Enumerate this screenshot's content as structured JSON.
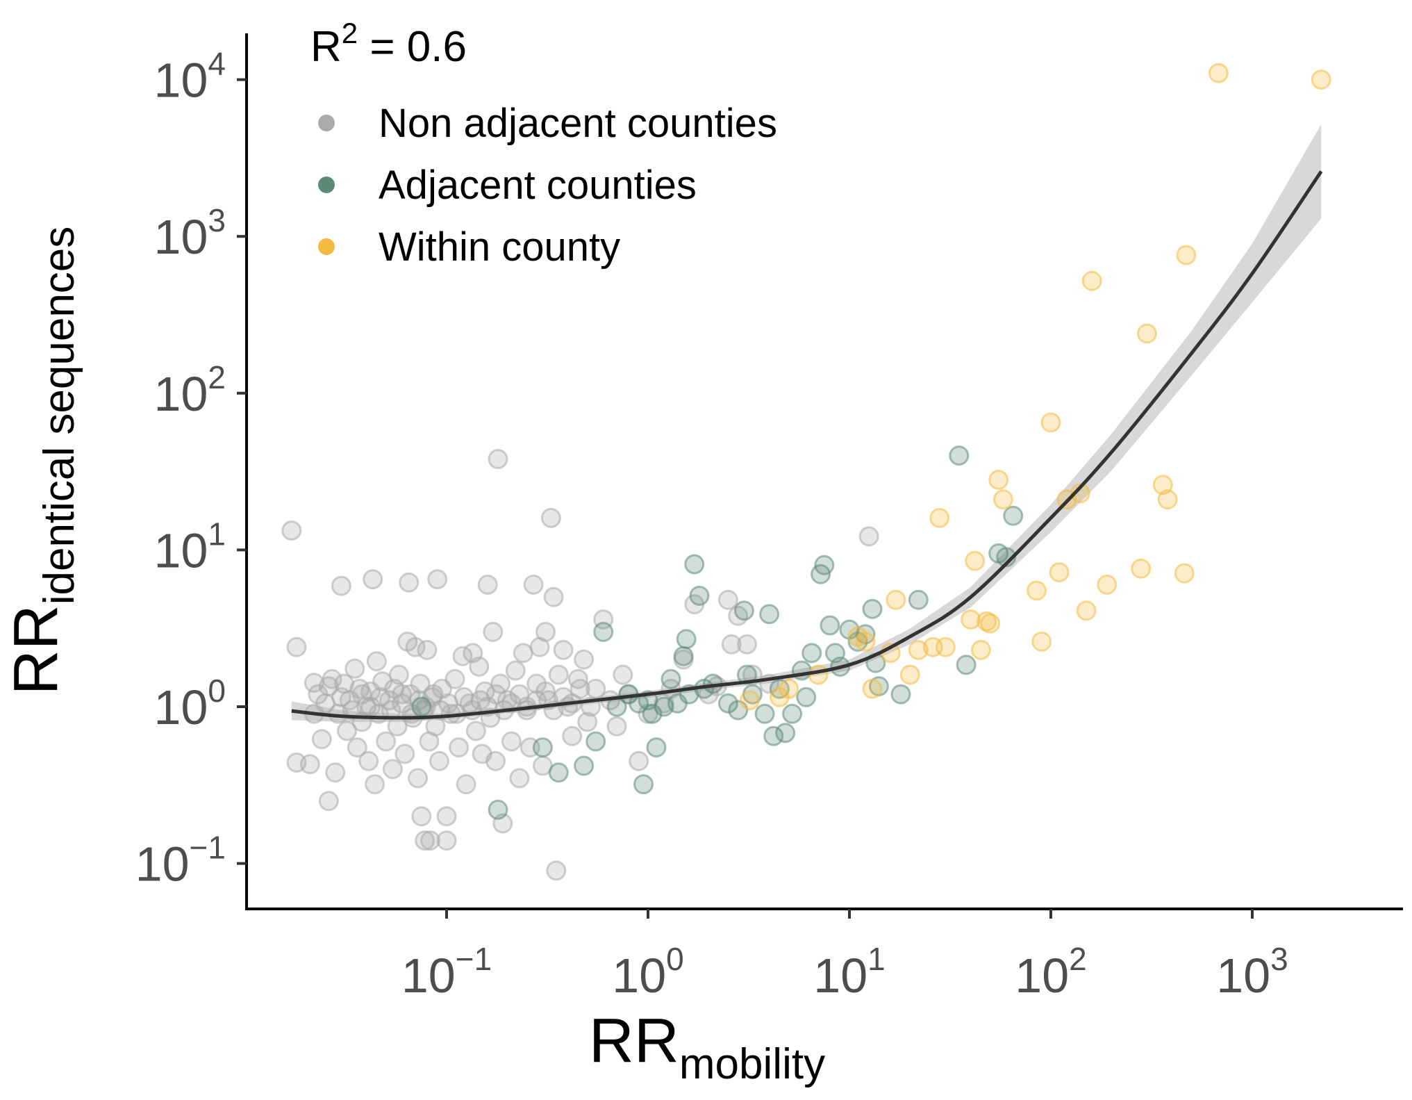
{
  "chart_data": {
    "type": "scatter",
    "x_scale": "log10",
    "y_scale": "log10",
    "xlim": [
      0.013,
      6000
    ],
    "ylim": [
      0.05,
      20000
    ],
    "x_ticks": [
      {
        "value": 0.1,
        "base": "10",
        "exp": "−1"
      },
      {
        "value": 1,
        "base": "10",
        "exp": "0"
      },
      {
        "value": 10,
        "base": "10",
        "exp": "1"
      },
      {
        "value": 100,
        "base": "10",
        "exp": "2"
      },
      {
        "value": 1000,
        "base": "10",
        "exp": "3"
      }
    ],
    "y_ticks": [
      {
        "value": 0.1,
        "base": "10",
        "exp": "−1"
      },
      {
        "value": 1,
        "base": "10",
        "exp": "0"
      },
      {
        "value": 10,
        "base": "10",
        "exp": "1"
      },
      {
        "value": 100,
        "base": "10",
        "exp": "2"
      },
      {
        "value": 1000,
        "base": "10",
        "exp": "3"
      },
      {
        "value": 10000,
        "base": "10",
        "exp": "4"
      }
    ],
    "xlabel": {
      "main": "RR",
      "sub": "mobility"
    },
    "ylabel": {
      "main": "RR",
      "sub": "identical sequences"
    },
    "annotation": {
      "main": "R",
      "sup": "2",
      "rest": " = 0.6"
    },
    "legend_position": "top-left",
    "grid": false,
    "series": [
      {
        "name": "Non adjacent counties",
        "color": "#aaaaaa",
        "points": [
          [
            0.017,
            13.3
          ],
          [
            0.018,
            2.4
          ],
          [
            0.018,
            0.44
          ],
          [
            0.021,
            0.43
          ],
          [
            0.022,
            1.42
          ],
          [
            0.023,
            1.2
          ],
          [
            0.024,
            0.62
          ],
          [
            0.025,
            1.05
          ],
          [
            0.026,
            0.25
          ],
          [
            0.027,
            1.5
          ],
          [
            0.028,
            0.38
          ],
          [
            0.029,
            0.9
          ],
          [
            0.03,
            5.9
          ],
          [
            0.031,
            1.4
          ],
          [
            0.032,
            0.7
          ],
          [
            0.033,
            1.1
          ],
          [
            0.035,
            1.75
          ],
          [
            0.036,
            0.55
          ],
          [
            0.037,
            1.3
          ],
          [
            0.038,
            0.8
          ],
          [
            0.04,
            1.0
          ],
          [
            0.041,
            0.45
          ],
          [
            0.042,
            1.25
          ],
          [
            0.043,
            6.5
          ],
          [
            0.044,
            0.32
          ],
          [
            0.045,
            1.95
          ],
          [
            0.046,
            0.9
          ],
          [
            0.048,
            1.45
          ],
          [
            0.05,
            0.6
          ],
          [
            0.052,
            1.1
          ],
          [
            0.054,
            0.4
          ],
          [
            0.055,
            1.3
          ],
          [
            0.057,
            0.75
          ],
          [
            0.058,
            1.6
          ],
          [
            0.06,
            1.05
          ],
          [
            0.062,
            0.5
          ],
          [
            0.064,
            2.6
          ],
          [
            0.065,
            6.2
          ],
          [
            0.066,
            1.2
          ],
          [
            0.068,
            0.85
          ],
          [
            0.07,
            2.4
          ],
          [
            0.072,
            0.35
          ],
          [
            0.074,
            1.4
          ],
          [
            0.075,
            0.2
          ],
          [
            0.077,
            0.95
          ],
          [
            0.078,
            0.14
          ],
          [
            0.08,
            2.3
          ],
          [
            0.082,
            0.6
          ],
          [
            0.083,
            0.14
          ],
          [
            0.085,
            1.15
          ],
          [
            0.088,
            0.75
          ],
          [
            0.09,
            6.5
          ],
          [
            0.092,
            0.45
          ],
          [
            0.095,
            1.3
          ],
          [
            0.1,
            0.14
          ],
          [
            0.1,
            0.2
          ],
          [
            0.105,
            0.9
          ],
          [
            0.11,
            1.5
          ],
          [
            0.115,
            0.55
          ],
          [
            0.12,
            2.1
          ],
          [
            0.125,
            0.32
          ],
          [
            0.13,
            1.05
          ],
          [
            0.135,
            2.2
          ],
          [
            0.14,
            0.7
          ],
          [
            0.145,
            1.8
          ],
          [
            0.15,
            0.5
          ],
          [
            0.155,
            1.25
          ],
          [
            0.16,
            6.0
          ],
          [
            0.165,
            0.85
          ],
          [
            0.17,
            3.0
          ],
          [
            0.175,
            0.45
          ],
          [
            0.18,
            38
          ],
          [
            0.185,
            1.4
          ],
          [
            0.19,
            0.18
          ],
          [
            0.2,
            1.1
          ],
          [
            0.21,
            0.6
          ],
          [
            0.22,
            1.7
          ],
          [
            0.23,
            0.35
          ],
          [
            0.24,
            2.2
          ],
          [
            0.25,
            1.0
          ],
          [
            0.26,
            0.55
          ],
          [
            0.27,
            6.0
          ],
          [
            0.28,
            1.4
          ],
          [
            0.29,
            2.4
          ],
          [
            0.3,
            0.42
          ],
          [
            0.31,
            3.0
          ],
          [
            0.32,
            1.1
          ],
          [
            0.33,
            16
          ],
          [
            0.34,
            5.0
          ],
          [
            0.35,
            0.09
          ],
          [
            0.36,
            1.6
          ],
          [
            0.38,
            2.3
          ],
          [
            0.4,
            1.0
          ],
          [
            0.42,
            0.65
          ],
          [
            0.45,
            1.5
          ],
          [
            0.48,
            2.0
          ],
          [
            0.5,
            0.8
          ],
          [
            0.55,
            1.3
          ],
          [
            0.6,
            3.6
          ],
          [
            0.65,
            1.1
          ],
          [
            0.7,
            0.75
          ],
          [
            0.75,
            1.6
          ],
          [
            0.8,
            1.2
          ],
          [
            0.9,
            0.45
          ],
          [
            1.0,
            0.9
          ],
          [
            1.2,
            1.05
          ],
          [
            1.3,
            1.3
          ],
          [
            1.5,
            2.0
          ],
          [
            1.7,
            4.5
          ],
          [
            2.0,
            1.2
          ],
          [
            2.2,
            1.35
          ],
          [
            2.5,
            4.8
          ],
          [
            2.6,
            2.5
          ],
          [
            2.8,
            3.8
          ],
          [
            3.1,
            2.5
          ],
          [
            3.3,
            1.6
          ],
          [
            4.0,
            1.4
          ],
          [
            12.5,
            12.2
          ],
          [
            0.022,
            0.9
          ],
          [
            0.026,
            1.35
          ],
          [
            0.03,
            1.15
          ],
          [
            0.034,
            0.95
          ],
          [
            0.038,
            1.2
          ],
          [
            0.042,
            1.0
          ],
          [
            0.047,
            1.15
          ],
          [
            0.053,
            0.95
          ],
          [
            0.06,
            1.2
          ],
          [
            0.067,
            0.9
          ],
          [
            0.073,
            1.1
          ],
          [
            0.079,
            1.0
          ],
          [
            0.086,
            1.2
          ],
          [
            0.093,
            0.95
          ],
          [
            0.102,
            1.05
          ],
          [
            0.112,
            0.9
          ],
          [
            0.122,
            1.15
          ],
          [
            0.134,
            0.95
          ],
          [
            0.147,
            1.1
          ],
          [
            0.16,
            1.0
          ],
          [
            0.176,
            1.2
          ],
          [
            0.193,
            0.95
          ],
          [
            0.21,
            1.05
          ],
          [
            0.23,
            1.2
          ],
          [
            0.25,
            0.95
          ],
          [
            0.28,
            1.1
          ],
          [
            0.31,
            1.25
          ],
          [
            0.34,
            0.95
          ],
          [
            0.38,
            1.15
          ],
          [
            0.42,
            1.05
          ],
          [
            0.46,
            1.3
          ],
          [
            0.52,
            1.0
          ]
        ]
      },
      {
        "name": "Adjacent counties",
        "color": "#5c8a76",
        "points": [
          [
            0.075,
            1.0
          ],
          [
            0.18,
            0.22
          ],
          [
            0.3,
            0.55
          ],
          [
            0.36,
            0.38
          ],
          [
            0.48,
            0.42
          ],
          [
            0.55,
            0.6
          ],
          [
            0.6,
            3.0
          ],
          [
            0.7,
            1.0
          ],
          [
            0.8,
            1.2
          ],
          [
            0.9,
            1.05
          ],
          [
            0.95,
            0.32
          ],
          [
            1.0,
            1.1
          ],
          [
            1.05,
            0.9
          ],
          [
            1.1,
            0.55
          ],
          [
            1.2,
            1.0
          ],
          [
            1.3,
            1.5
          ],
          [
            1.4,
            1.05
          ],
          [
            1.5,
            2.1
          ],
          [
            1.55,
            2.7
          ],
          [
            1.6,
            1.2
          ],
          [
            1.7,
            8.1
          ],
          [
            1.8,
            5.1
          ],
          [
            1.9,
            1.3
          ],
          [
            2.1,
            1.4
          ],
          [
            2.5,
            1.05
          ],
          [
            2.8,
            0.95
          ],
          [
            3.0,
            4.1
          ],
          [
            3.1,
            1.6
          ],
          [
            3.3,
            1.2
          ],
          [
            3.8,
            0.9
          ],
          [
            4.0,
            3.9
          ],
          [
            4.2,
            0.65
          ],
          [
            4.5,
            1.3
          ],
          [
            4.8,
            0.68
          ],
          [
            5.2,
            0.9
          ],
          [
            5.8,
            1.7
          ],
          [
            6.1,
            1.15
          ],
          [
            6.5,
            2.2
          ],
          [
            7.2,
            7.0
          ],
          [
            7.5,
            8.0
          ],
          [
            8.0,
            3.3
          ],
          [
            8.5,
            2.2
          ],
          [
            9.0,
            1.8
          ],
          [
            10,
            3.1
          ],
          [
            11,
            2.6
          ],
          [
            12,
            2.9
          ],
          [
            13,
            4.2
          ],
          [
            13.5,
            1.9
          ],
          [
            14,
            1.35
          ],
          [
            18,
            1.2
          ],
          [
            22,
            4.8
          ],
          [
            35,
            40
          ],
          [
            38,
            1.85
          ],
          [
            55,
            9.5
          ],
          [
            60,
            9.0
          ],
          [
            65,
            16.5
          ]
        ]
      },
      {
        "name": "Within county",
        "color": "#f3bb40",
        "points": [
          [
            3.2,
            1.1
          ],
          [
            4.5,
            1.15
          ],
          [
            5.0,
            1.3
          ],
          [
            7.0,
            1.6
          ],
          [
            11,
            2.8
          ],
          [
            12,
            2.6
          ],
          [
            13,
            1.3
          ],
          [
            16,
            2.2
          ],
          [
            17,
            4.8
          ],
          [
            20,
            1.6
          ],
          [
            22,
            2.3
          ],
          [
            26,
            2.4
          ],
          [
            28,
            16
          ],
          [
            30,
            2.4
          ],
          [
            40,
            3.6
          ],
          [
            42,
            8.5
          ],
          [
            45,
            2.3
          ],
          [
            48,
            3.5
          ],
          [
            50,
            3.4
          ],
          [
            55,
            28
          ],
          [
            58,
            21
          ],
          [
            85,
            5.5
          ],
          [
            90,
            2.6
          ],
          [
            100,
            65
          ],
          [
            110,
            7.2
          ],
          [
            120,
            21
          ],
          [
            140,
            23
          ],
          [
            150,
            4.1
          ],
          [
            160,
            520
          ],
          [
            190,
            6.0
          ],
          [
            280,
            7.6
          ],
          [
            300,
            240
          ],
          [
            360,
            26
          ],
          [
            380,
            21
          ],
          [
            460,
            7.1
          ],
          [
            470,
            760
          ],
          [
            680,
            11000
          ],
          [
            2200,
            10000
          ]
        ]
      }
    ],
    "trend": {
      "x": [
        0.017,
        0.03,
        0.06,
        0.1,
        0.2,
        0.4,
        1,
        2,
        4,
        10,
        20,
        40,
        100,
        200,
        500,
        1000,
        2200
      ],
      "y": [
        0.94,
        0.87,
        0.85,
        0.87,
        0.95,
        1.05,
        1.2,
        1.35,
        1.5,
        1.85,
        2.8,
        5.0,
        16,
        42,
        180,
        580,
        2600
      ],
      "ci_low": [
        0.82,
        0.8,
        0.8,
        0.83,
        0.91,
        1.0,
        1.14,
        1.28,
        1.41,
        1.7,
        2.5,
        4.3,
        13,
        32,
        130,
        380,
        1300
      ],
      "ci_high": [
        1.08,
        0.95,
        0.9,
        0.91,
        0.99,
        1.1,
        1.26,
        1.42,
        1.6,
        2.0,
        3.15,
        5.8,
        19.5,
        55,
        250,
        900,
        5200
      ]
    }
  }
}
